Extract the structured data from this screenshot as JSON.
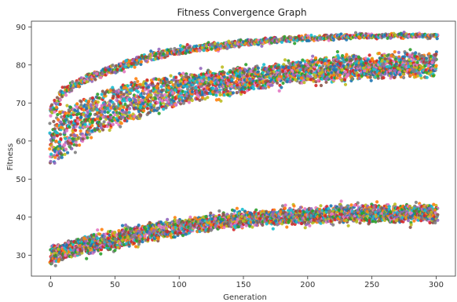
{
  "chart_data": {
    "type": "scatter",
    "title": "Fitness Convergence Graph",
    "xlabel": "Generation",
    "ylabel": "Fitness",
    "xlim": [
      -15,
      315
    ],
    "ylim": [
      24.5,
      91.5
    ],
    "xticks": [
      0,
      50,
      100,
      150,
      200,
      250,
      300
    ],
    "yticks": [
      30,
      40,
      50,
      60,
      70,
      80,
      90
    ],
    "grid": false,
    "legend": "none",
    "palette": [
      "#1f77b4",
      "#ff7f0e",
      "#2ca02c",
      "#d62728",
      "#9467bd",
      "#8c564b",
      "#e377c2",
      "#7f7f7f",
      "#bcbd22",
      "#17becf"
    ],
    "bands": [
      {
        "name": "",
        "generation_samples": [
          0,
          5,
          10,
          20,
          30,
          50,
          75,
          100,
          125,
          150,
          175,
          200,
          225,
          250,
          275,
          300
        ],
        "fitness_low": [
          53,
          55,
          56,
          59,
          61,
          64,
          67,
          70,
          72,
          73,
          75,
          76,
          76,
          77,
          77,
          77
        ],
        "fitness_high": [
          65,
          67,
          68,
          70,
          71,
          74,
          76,
          77,
          78,
          79,
          80,
          81,
          82,
          82,
          83,
          83
        ]
      },
      {
        "name": "",
        "generation_samples": [
          0,
          10,
          25,
          50,
          75,
          100,
          125,
          150,
          175,
          200,
          225,
          250,
          275,
          300
        ],
        "fitness_low": [
          66,
          72,
          75,
          78,
          81,
          83,
          84,
          85,
          86,
          86.5,
          87,
          87.3,
          87.5,
          87.5
        ],
        "fitness_high": [
          69,
          74,
          77,
          80,
          83,
          84.5,
          85.5,
          86.5,
          87,
          87.5,
          87.8,
          88,
          88,
          88
        ]
      },
      {
        "name": "",
        "generation_samples": [
          0,
          10,
          25,
          50,
          75,
          100,
          125,
          150,
          175,
          200,
          225,
          250,
          275,
          300
        ],
        "fitness_low": [
          28,
          29,
          30.5,
          32,
          34,
          35.5,
          37,
          38,
          38.5,
          38.5,
          39,
          39,
          39,
          39
        ],
        "fitness_high": [
          32,
          33,
          34.5,
          36,
          38,
          39,
          40,
          41,
          41.5,
          42,
          42.5,
          43,
          43,
          43
        ]
      }
    ]
  }
}
